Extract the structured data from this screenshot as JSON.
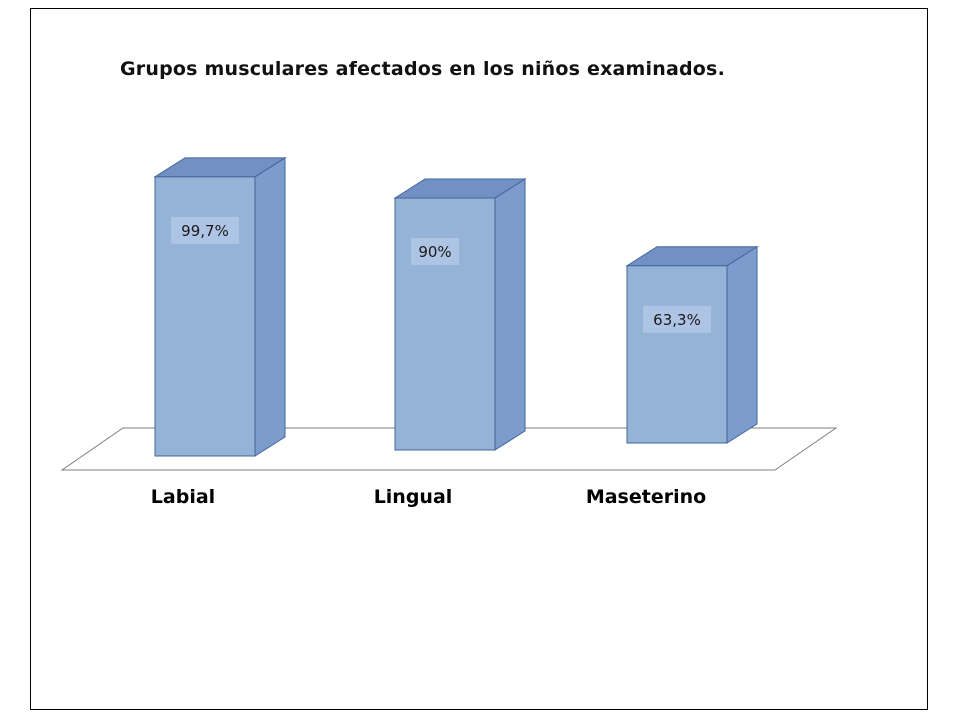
{
  "page": {
    "background": "#ffffff",
    "frame_border_color": "#000000"
  },
  "chart_data": {
    "type": "bar",
    "style": "3d-bars",
    "title": "Grupos musculares afectados en los niños examinados.",
    "categories": [
      "Labial",
      "Lingual",
      "Maseterino"
    ],
    "values": [
      99.7,
      90,
      63.3
    ],
    "value_labels": [
      "99,7%",
      "90%",
      "63,3%"
    ],
    "xlabel": "",
    "ylabel": "",
    "ylim": [
      0,
      100
    ],
    "grid": false,
    "legend": "none",
    "colors": {
      "bar_front": "#95B3D7",
      "bar_top": "#7191C4",
      "bar_side": "#7C9CCE",
      "bar_outline": "#44669A",
      "value_label_bg": "#AEC4E4",
      "floor_fill": "#FFFFFF",
      "floor_outline": "#808080",
      "text": "#1A1A1A"
    }
  }
}
